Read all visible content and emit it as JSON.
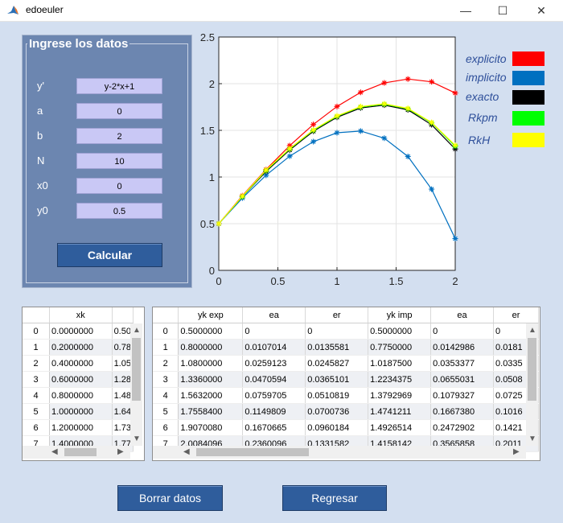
{
  "window": {
    "title": "edoeuler",
    "minimize": "—",
    "maximize": "☐",
    "close": "✕"
  },
  "panel": {
    "title": "Ingrese los datos",
    "fields": [
      {
        "label": "y'",
        "value": "y-2*x+1"
      },
      {
        "label": "a",
        "value": "0"
      },
      {
        "label": "b",
        "value": "2"
      },
      {
        "label": "N",
        "value": "10"
      },
      {
        "label": "x0",
        "value": "0"
      },
      {
        "label": "y0",
        "value": "0.5"
      }
    ],
    "calc_label": "Calcular"
  },
  "chart_data": {
    "type": "line",
    "xlim": [
      0,
      2
    ],
    "ylim": [
      0,
      2.5
    ],
    "xticks": [
      "0",
      "0.5",
      "1",
      "1.5",
      "2"
    ],
    "yticks": [
      "0",
      "0.5",
      "1",
      "1.5",
      "2",
      "2.5"
    ],
    "grid": true,
    "legend_position": "right",
    "x": [
      0,
      0.2,
      0.4,
      0.6,
      0.8,
      1.0,
      1.2,
      1.4,
      1.6,
      1.8,
      2.0
    ],
    "series": [
      {
        "name": "explicito",
        "color": "#ff0000",
        "values": [
          0.5,
          0.8,
          1.08,
          1.336,
          1.5632,
          1.75584,
          1.907,
          2.0084,
          2.05,
          2.02,
          1.9
        ]
      },
      {
        "name": "implicito",
        "color": "#0070c0",
        "values": [
          0.5,
          0.775,
          1.01875,
          1.22344,
          1.3793,
          1.47412,
          1.49265,
          1.41581,
          1.22,
          0.87,
          0.34
        ]
      },
      {
        "name": "exacto",
        "color": "#000000",
        "values": [
          0.5,
          0.79,
          1.06,
          1.29,
          1.49,
          1.64,
          1.74,
          1.77,
          1.72,
          1.56,
          1.3
        ]
      },
      {
        "name": "Rkpm",
        "color": "#00ff00",
        "values": [
          0.5,
          0.79,
          1.07,
          1.3,
          1.5,
          1.65,
          1.75,
          1.78,
          1.73,
          1.58,
          1.33
        ]
      },
      {
        "name": "RkH",
        "color": "#ffff00",
        "values": [
          0.5,
          0.795,
          1.075,
          1.305,
          1.505,
          1.655,
          1.755,
          1.785,
          1.735,
          1.585,
          1.34
        ]
      }
    ]
  },
  "table_left": {
    "headers": [
      "",
      "xk",
      ""
    ],
    "rows": [
      [
        "0",
        "0.0000000",
        "0.50"
      ],
      [
        "1",
        "0.2000000",
        "0.78"
      ],
      [
        "2",
        "0.4000000",
        "1.05"
      ],
      [
        "3",
        "0.6000000",
        "1.28"
      ],
      [
        "4",
        "0.8000000",
        "1.48"
      ],
      [
        "5",
        "1.0000000",
        "1.64"
      ],
      [
        "6",
        "1.2000000",
        "1.73"
      ],
      [
        "7",
        "1.4000000",
        "1.77"
      ]
    ]
  },
  "table_right": {
    "headers": [
      "",
      "yk exp",
      "ea",
      "er",
      "yk imp",
      "ea",
      "er"
    ],
    "rows": [
      [
        "0",
        "0.5000000",
        "0",
        "0",
        "0.5000000",
        "0",
        "0"
      ],
      [
        "1",
        "0.8000000",
        "0.0107014",
        "0.0135581",
        "0.7750000",
        "0.0142986",
        "0.0181"
      ],
      [
        "2",
        "1.0800000",
        "0.0259123",
        "0.0245827",
        "1.0187500",
        "0.0353377",
        "0.0335"
      ],
      [
        "3",
        "1.3360000",
        "0.0470594",
        "0.0365101",
        "1.2234375",
        "0.0655031",
        "0.0508"
      ],
      [
        "4",
        "1.5632000",
        "0.0759705",
        "0.0510819",
        "1.3792969",
        "0.1079327",
        "0.0725"
      ],
      [
        "5",
        "1.7558400",
        "0.1149809",
        "0.0700736",
        "1.4741211",
        "0.1667380",
        "0.1016"
      ],
      [
        "6",
        "1.9070080",
        "0.1670665",
        "0.0960184",
        "1.4926514",
        "0.2472902",
        "0.1421"
      ],
      [
        "7",
        "2.0084096",
        "0.2360096",
        "0.1331582",
        "1.4158142",
        "0.3565858",
        "0.2011"
      ]
    ]
  },
  "buttons": {
    "clear_label": "Borrar datos",
    "back_label": "Regresar"
  }
}
